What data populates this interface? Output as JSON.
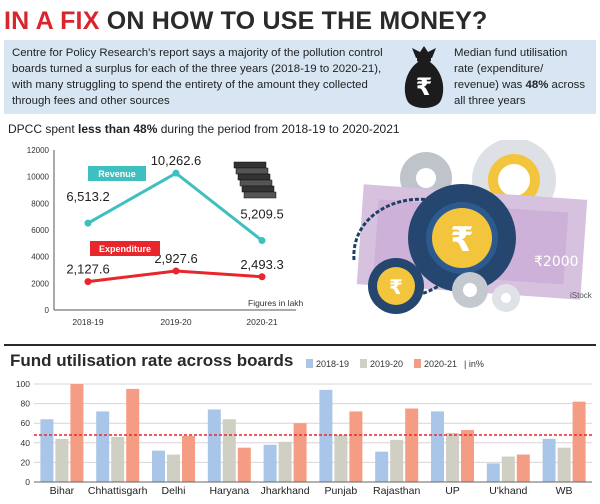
{
  "headline": {
    "part1": "IN A FIX",
    "part2": "ON HOW TO USE THE MONEY?"
  },
  "intro": {
    "text": "Centre for Policy Research's report says a majority of the pollution control boards turned a surplus for each of the three years (2018-19 to 2020-21), with many struggling to spend the entirety of the amount they collected through fees and other sources",
    "side_text_1": "Median fund utilisation rate (expenditure/ revenue) was ",
    "side_bold": "48%",
    "side_text_2": " across all three years"
  },
  "dpcc": {
    "prefix": "DPCC spent ",
    "bold": "less than 48%",
    "suffix": " during the period from 2018-19 to 2020-2021"
  },
  "illustration": {
    "note_value": "₹2000",
    "credit": "iStock"
  },
  "colors": {
    "revenue": "#3fbfbf",
    "expenditure": "#e8262c",
    "bar_2018": "#a9c6e8",
    "bar_2019": "#cfcfc4",
    "bar_2020": "#f49c84",
    "median_line": "#e8262c",
    "intro_bg": "#d7e6f2"
  },
  "chart_data": [
    {
      "type": "line",
      "categories": [
        "2018-19",
        "2019-20",
        "2020-21"
      ],
      "series": [
        {
          "name": "Revenue",
          "values": [
            6513.2,
            10262.6,
            5209.5
          ],
          "labels": [
            "6,513.2",
            "10,262.6",
            "5,209.5"
          ]
        },
        {
          "name": "Expenditure",
          "values": [
            2127.6,
            2927.6,
            2493.3
          ],
          "labels": [
            "2,127.6",
            "2,927.6",
            "2,493.3"
          ]
        }
      ],
      "yticks": [
        0,
        2000,
        4000,
        6000,
        8000,
        10000,
        12000
      ],
      "ylim": [
        0,
        12000
      ],
      "annotation": "Figures in lakh",
      "grid": false
    },
    {
      "type": "bar",
      "title": "Fund utilisation rate across boards",
      "categories": [
        "Bihar",
        "Chhattisgarh",
        "Delhi",
        "Haryana",
        "Jharkhand",
        "Punjab",
        "Rajasthan",
        "UP",
        "U'khand",
        "WB"
      ],
      "series": [
        {
          "name": "2018-19",
          "values": [
            64,
            72,
            32,
            74,
            38,
            94,
            31,
            72,
            19,
            44
          ]
        },
        {
          "name": "2019-20",
          "values": [
            44,
            46,
            28,
            64,
            41,
            48,
            43,
            50,
            26,
            35
          ]
        },
        {
          "name": "2020-21",
          "values": [
            100,
            95,
            47,
            35,
            60,
            72,
            75,
            53,
            28,
            82
          ]
        }
      ],
      "legend_suffix": "| in%",
      "legend_position": "top-right",
      "yticks": [
        0,
        20,
        40,
        60,
        80,
        100
      ],
      "ylim": [
        0,
        100
      ],
      "reference_line": 48,
      "grid": true
    }
  ]
}
